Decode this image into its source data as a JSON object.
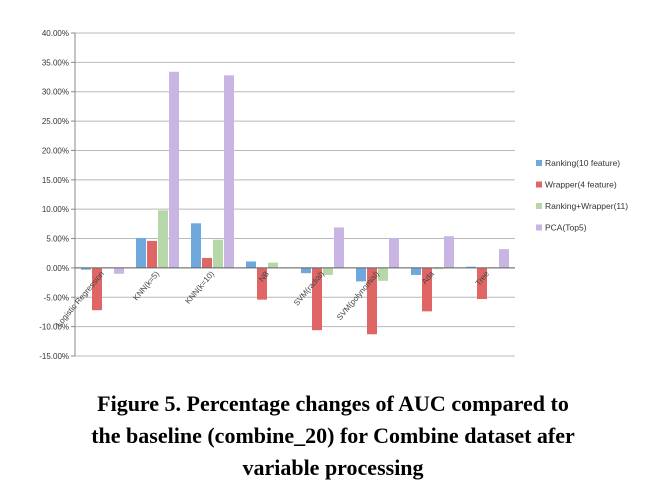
{
  "chart_data": {
    "type": "bar",
    "title": "",
    "xlabel": "",
    "ylabel": "",
    "ylim": [
      -0.15,
      0.4
    ],
    "ytick_step": 0.05,
    "ytick_format": "percent-2dp",
    "grid": true,
    "legend_position": "right",
    "categories": [
      "Logistic Regression",
      "KNN(k=5)",
      "KNN(k=10)",
      "NB",
      "SVM(radial)",
      "SVM(polynomial)",
      "Ada",
      "Tree"
    ],
    "series": [
      {
        "name": "Ranking(10 feature)",
        "color": "#6fa8dc",
        "values": [
          -0.003,
          0.051,
          0.076,
          0.011,
          -0.009,
          -0.023,
          -0.012,
          0.002
        ]
      },
      {
        "name": "Wrapper(4 feature)",
        "color": "#e06666",
        "values": [
          -0.072,
          0.046,
          0.017,
          -0.054,
          -0.106,
          -0.113,
          -0.074,
          -0.053
        ]
      },
      {
        "name": "Ranking+Wrapper(11)",
        "color": "#b6d7a8",
        "values": [
          0.001,
          0.098,
          0.048,
          0.009,
          -0.012,
          -0.022,
          -0.002,
          0.001
        ]
      },
      {
        "name": "PCA(Top5)",
        "color": "#c9b5e3",
        "values": [
          -0.01,
          0.334,
          0.328,
          0.0,
          0.069,
          0.051,
          0.054,
          0.032
        ]
      }
    ]
  },
  "caption": {
    "line1": "Figure 5. Percentage changes of AUC compared to",
    "line2": "the baseline (combine_20) for Combine dataset afer",
    "line3": "variable processing"
  }
}
